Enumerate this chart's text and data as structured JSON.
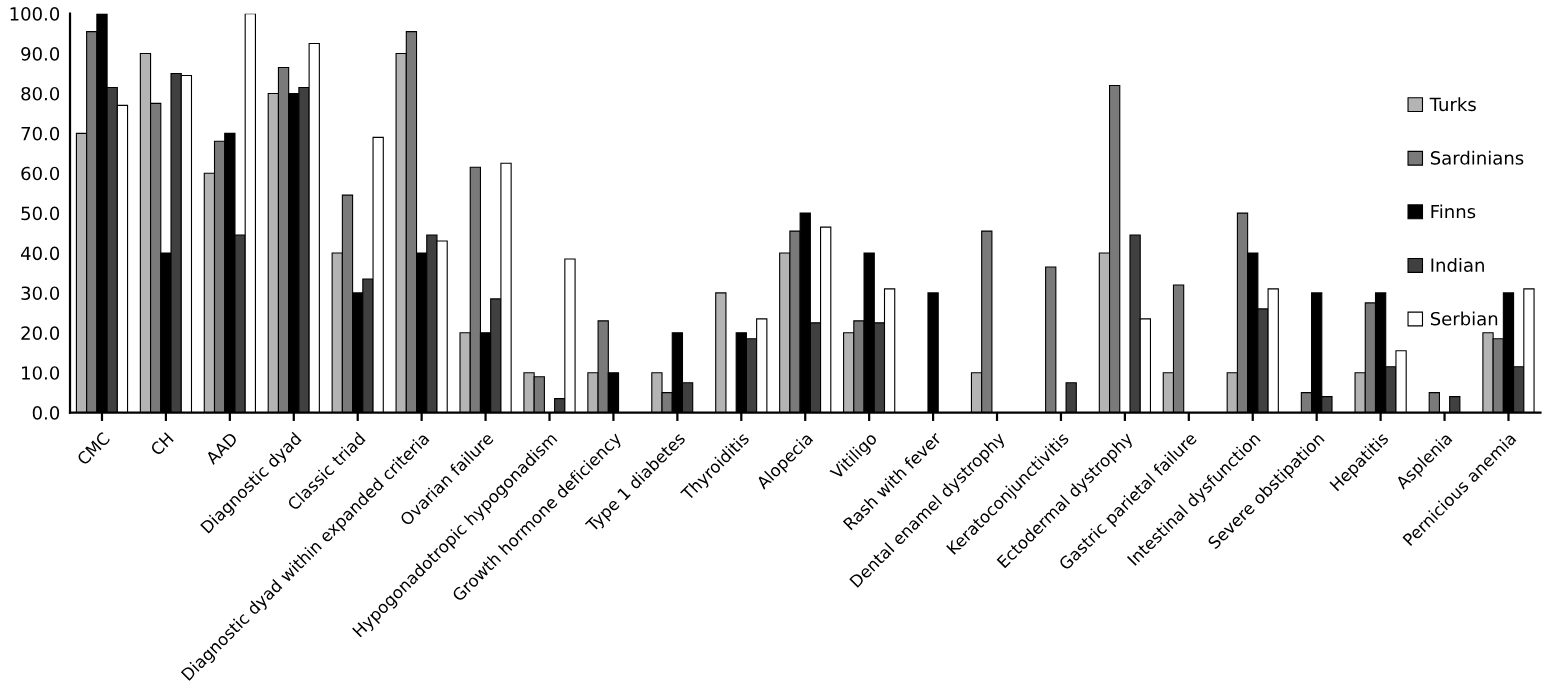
{
  "chart_data": {
    "type": "bar",
    "categories": [
      "CMC",
      "CH",
      "AAD",
      "Diagnostic dyad",
      "Classic triad",
      "Diagnostic dyad within expanded criteria",
      "Ovarian failure",
      "Hypogonadotropic hypogonadism",
      "Growth hormone deficiency",
      "Type 1 diabetes",
      "Thyroiditis",
      "Alopecia",
      "Vitiligo",
      "Rash with fever",
      "Dental enamel dystrophy",
      "Keratoconjunctivitis",
      "Ectodermal dystrophy",
      "Gastric parietal failure",
      "Intestinal dysfunction",
      "Severe obstipation",
      "Hepatitis",
      "Asplenia",
      "Pernicious anemia"
    ],
    "series": [
      {
        "name": "Turks",
        "color": "#b4b4b4",
        "values": [
          70,
          90,
          60,
          80,
          40,
          90,
          20,
          10,
          10,
          10,
          30,
          40,
          20,
          null,
          10,
          null,
          40,
          10,
          10,
          null,
          10,
          null,
          20
        ]
      },
      {
        "name": "Sardinians",
        "color": "#7a7a7a",
        "values": [
          95.5,
          77.5,
          68,
          86.5,
          54.5,
          95.5,
          61.5,
          9,
          23,
          5,
          null,
          45.5,
          23,
          null,
          45.5,
          36.5,
          82,
          32,
          50,
          5,
          27.5,
          5,
          18.5
        ]
      },
      {
        "name": "Finns",
        "color": "#000000",
        "values": [
          100,
          40,
          70,
          80,
          30,
          40,
          20,
          null,
          10,
          20,
          20,
          50,
          40,
          30,
          null,
          null,
          null,
          null,
          40,
          30,
          30,
          null,
          30
        ]
      },
      {
        "name": "Indian",
        "color": "#404040",
        "values": [
          81.5,
          85,
          44.5,
          81.5,
          33.5,
          44.5,
          28.5,
          3.5,
          null,
          7.5,
          18.5,
          22.5,
          22.5,
          null,
          null,
          7.5,
          44.5,
          null,
          26,
          4,
          11.5,
          4,
          11.5
        ]
      },
      {
        "name": "Serbian",
        "color": "#ffffff",
        "values": [
          77,
          84.5,
          100,
          92.5,
          69,
          43,
          62.5,
          38.5,
          null,
          null,
          23.5,
          46.5,
          31,
          null,
          null,
          null,
          23.5,
          null,
          31,
          null,
          15.5,
          null,
          31
        ]
      }
    ],
    "ylim": [
      0,
      100
    ],
    "yticks": [
      {
        "value": 0,
        "label": "0.0"
      },
      {
        "value": 10,
        "label": "10.0"
      },
      {
        "value": 20,
        "label": "20.0"
      },
      {
        "value": 30,
        "label": "30.0"
      },
      {
        "value": 40,
        "label": "40.0"
      },
      {
        "value": 50,
        "label": "50.0"
      },
      {
        "value": 60,
        "label": "60.0"
      },
      {
        "value": 70,
        "label": "70.0"
      },
      {
        "value": 80,
        "label": "80.0"
      },
      {
        "value": 90,
        "label": "90.0"
      },
      {
        "value": 100,
        "label": "100.0"
      }
    ],
    "grid": false,
    "legend": "right"
  }
}
